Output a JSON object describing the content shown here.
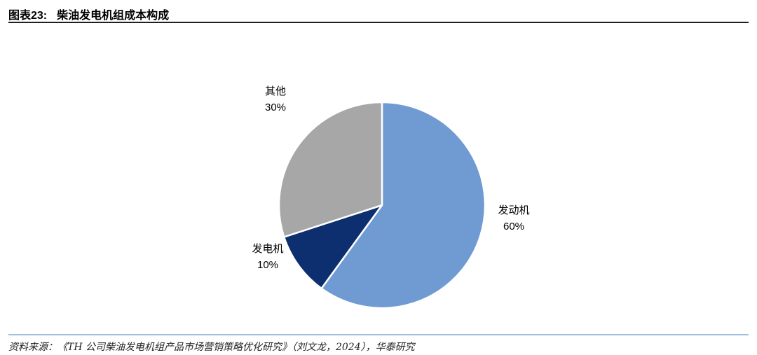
{
  "header": {
    "figure_label": "图表23:",
    "figure_title": "柴油发电机组成本构成"
  },
  "chart_data": {
    "type": "pie",
    "title": "柴油发电机组成本构成",
    "start_angle": "top",
    "direction": "clockwise",
    "legend_position": "none",
    "label_position": "outside",
    "slices": [
      {
        "name": "发动机",
        "value": 60,
        "pct_label": "60%",
        "color": "#6F9BD2"
      },
      {
        "name": "发电机",
        "value": 10,
        "pct_label": "10%",
        "color": "#0D2F6F"
      },
      {
        "name": "其他",
        "value": 30,
        "pct_label": "30%",
        "color": "#A7A7A7"
      }
    ]
  },
  "footer": {
    "source_text": "资料来源：《TH 公司柴油发电机组产品市场营销策略优化研究》（刘文龙，2024），华泰研究"
  },
  "colors": {
    "title_rule": "#1f1f1f",
    "footer_rule": "#a3bfdf",
    "slice_stroke": "#ffffff"
  }
}
